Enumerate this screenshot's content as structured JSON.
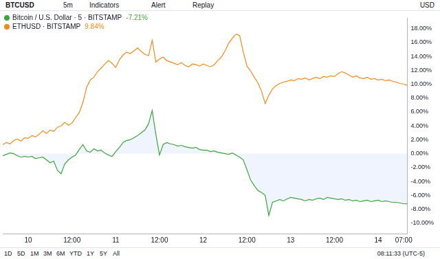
{
  "toolbar": {
    "symbol": "BTCUSD",
    "interval": "5m",
    "buttons": [
      "Indicators",
      "Alert",
      "Replay"
    ],
    "currency": "USD"
  },
  "bottom_bar": {
    "ranges": [
      "1D",
      "5D",
      "1M",
      "3M",
      "6M",
      "YTD",
      "1Y",
      "5Y",
      "All"
    ],
    "clock": "08:11:33 (UTC-5)"
  },
  "chart_data": {
    "type": "line",
    "legend": "top-left",
    "grid": false,
    "categories": [
      null,
      null,
      null,
      null,
      null,
      null,
      null,
      "10",
      null,
      null,
      null,
      null,
      null,
      null,
      null,
      null,
      null,
      null,
      null,
      "12:00",
      null,
      null,
      null,
      null,
      null,
      null,
      null,
      null,
      null,
      null,
      null,
      "11",
      null,
      null,
      null,
      null,
      null,
      null,
      null,
      null,
      null,
      null,
      null,
      "12:00",
      null,
      null,
      null,
      null,
      null,
      null,
      null,
      null,
      null,
      null,
      null,
      "12",
      null,
      null,
      null,
      null,
      null,
      null,
      null,
      null,
      null,
      null,
      null,
      "12:00",
      null,
      null,
      null,
      null,
      null,
      null,
      null,
      null,
      null,
      null,
      null,
      "13",
      null,
      null,
      null,
      null,
      null,
      null,
      null,
      null,
      null,
      null,
      null,
      "12:00",
      null,
      null,
      null,
      null,
      null,
      null,
      null,
      null,
      null,
      null,
      null,
      "14",
      null,
      null,
      null,
      null,
      null,
      null,
      "07:00",
      null
    ],
    "ylim": [
      -11.5,
      19.5
    ],
    "yticks": [
      {
        "value": -10,
        "label": "-10.00%"
      },
      {
        "value": -8,
        "label": "-8.00%"
      },
      {
        "value": -6,
        "label": "-6.00%"
      },
      {
        "value": -4,
        "label": "-4.00%"
      },
      {
        "value": -2,
        "label": "-2.00%"
      },
      {
        "value": 0,
        "label": "0.00%"
      },
      {
        "value": 2,
        "label": "2.00%"
      },
      {
        "value": 4,
        "label": "4.00%"
      },
      {
        "value": 6,
        "label": "6.00%"
      },
      {
        "value": 8,
        "label": "8.00%"
      },
      {
        "value": 10,
        "label": "10.00%"
      },
      {
        "value": 12,
        "label": "12.00%"
      },
      {
        "value": 14,
        "label": "14.00%"
      },
      {
        "value": 16,
        "label": "16.00%"
      },
      {
        "value": 18,
        "label": "18.00%"
      }
    ],
    "series": [
      {
        "name": "Bitcoin / U.S. Dollar · 5 · BITSTAMP",
        "color": "#3aa63a",
        "change_label": "-7.21%",
        "values": [
          -0.3,
          -0.1,
          0.1,
          0.0,
          -0.3,
          -0.5,
          -0.4,
          -0.5,
          -0.4,
          -0.7,
          -0.6,
          -0.5,
          -0.9,
          -1.3,
          -1.1,
          -2.4,
          -2.9,
          -1.5,
          -0.9,
          -0.5,
          -0.2,
          0.6,
          1.3,
          0.4,
          0.2,
          0.7,
          0.4,
          0.5,
          0.1,
          -0.2,
          -0.4,
          0.3,
          0.9,
          1.6,
          1.9,
          2.0,
          2.3,
          2.6,
          3.0,
          3.4,
          4.3,
          6.2,
          2.8,
          -0.2,
          1.3,
          1.6,
          1.4,
          1.3,
          1.1,
          1.2,
          1.0,
          0.9,
          0.8,
          0.9,
          0.6,
          0.5,
          0.5,
          0.3,
          0.4,
          0.2,
          0.1,
          0.0,
          -0.1,
          0.1,
          -0.2,
          -0.5,
          -0.9,
          -2.3,
          -3.8,
          -4.6,
          -5.3,
          -5.6,
          -6.0,
          -8.9,
          -7.0,
          -6.8,
          -6.6,
          -6.8,
          -6.5,
          -6.3,
          -6.4,
          -6.5,
          -6.6,
          -6.8,
          -6.6,
          -6.7,
          -6.5,
          -6.4,
          -6.6,
          -6.3,
          -6.4,
          -6.5,
          -6.6,
          -6.5,
          -6.7,
          -6.6,
          -6.8,
          -6.7,
          -6.9,
          -6.8,
          -6.7,
          -6.9,
          -6.8,
          -6.7,
          -6.9,
          -6.8,
          -6.9,
          -7.0,
          -7.0,
          -7.1,
          -7.2,
          -7.21
        ]
      },
      {
        "name": "ETHUSD · BITSTAMP",
        "color": "#f28a18",
        "change_label": "9.84%",
        "values": [
          1.3,
          1.6,
          1.4,
          1.9,
          2.1,
          1.8,
          2.3,
          2.2,
          2.6,
          2.4,
          2.8,
          3.3,
          2.9,
          3.4,
          3.2,
          3.8,
          4.0,
          4.5,
          4.1,
          4.4,
          5.2,
          5.9,
          7.4,
          9.5,
          10.6,
          11.0,
          11.8,
          12.3,
          12.9,
          13.4,
          13.0,
          12.4,
          13.5,
          14.2,
          14.6,
          14.4,
          14.8,
          15.2,
          14.7,
          14.3,
          14.1,
          16.3,
          13.2,
          13.6,
          13.9,
          13.4,
          13.2,
          13.0,
          12.8,
          13.1,
          12.7,
          12.5,
          12.9,
          12.8,
          12.6,
          12.9,
          12.7,
          12.5,
          12.8,
          13.4,
          13.9,
          14.8,
          15.9,
          16.6,
          17.2,
          17.0,
          14.6,
          12.6,
          11.9,
          11.0,
          10.2,
          9.0,
          7.2,
          8.4,
          9.3,
          9.8,
          10.1,
          10.3,
          10.4,
          10.6,
          10.5,
          10.8,
          10.7,
          10.9,
          10.6,
          10.8,
          11.0,
          10.8,
          11.1,
          11.0,
          11.2,
          11.1,
          11.5,
          11.8,
          11.6,
          11.3,
          11.0,
          11.2,
          10.9,
          10.8,
          11.0,
          10.7,
          10.8,
          10.6,
          10.7,
          10.5,
          10.6,
          10.4,
          10.3,
          10.1,
          10.0,
          9.84
        ]
      }
    ]
  }
}
